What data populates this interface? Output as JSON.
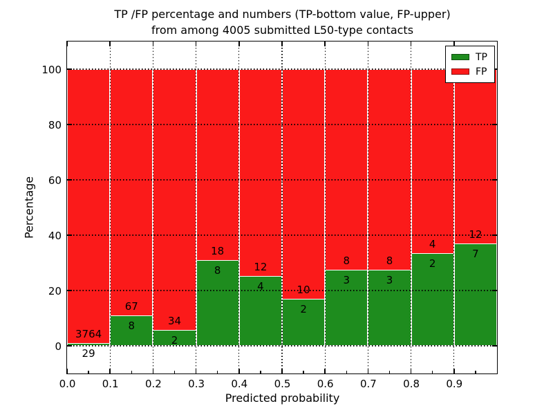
{
  "title": {
    "line1": "TP /FP percentage and numbers (TP-bottom value, FP-upper)",
    "line2": "from among 4005 submitted L50-type contacts"
  },
  "chart_data": {
    "type": "bar",
    "stacked": true,
    "percent_stacked_per_bin": true,
    "title": "TP /FP percentage and numbers (TP-bottom value, FP-upper) from among 4005 submitted L50-type contacts",
    "xlabel": "Predicted probability",
    "ylabel": "Percentage",
    "bin_width": 0.1,
    "bin_starts": [
      0.0,
      0.1,
      0.2,
      0.3,
      0.4,
      0.5,
      0.6,
      0.7,
      0.8,
      0.9
    ],
    "series": [
      {
        "name": "TP",
        "color": "#1e8c1e",
        "values": [
          29,
          8,
          2,
          8,
          4,
          2,
          3,
          3,
          2,
          7
        ]
      },
      {
        "name": "FP",
        "color": "#fb1a1a",
        "values": [
          3764,
          67,
          34,
          18,
          12,
          10,
          8,
          8,
          4,
          12
        ]
      }
    ],
    "xlim": [
      0,
      1
    ],
    "ylim": [
      -10,
      110
    ],
    "xticks": [
      0,
      0.1,
      0.2,
      0.3,
      0.4,
      0.5,
      0.6,
      0.7,
      0.8,
      0.9
    ],
    "xticklabels": [
      "0.0",
      "0.1",
      "0.2",
      "0.3",
      "0.4",
      "0.5",
      "0.6",
      "0.7",
      "0.8",
      "0.9"
    ],
    "x_minor_ticks": [
      0.05,
      0.15,
      0.25,
      0.35,
      0.45,
      0.55,
      0.65,
      0.75,
      0.85,
      0.95
    ],
    "yticks": [
      0,
      20,
      40,
      60,
      80,
      100
    ],
    "yticklabels": [
      "0",
      "20",
      "40",
      "60",
      "80",
      "100"
    ],
    "grid": true,
    "grid_style": "dotted",
    "bar_edge_color": "#ffffff",
    "legend": {
      "position": "upper right",
      "entries": [
        "TP",
        "FP"
      ]
    }
  }
}
